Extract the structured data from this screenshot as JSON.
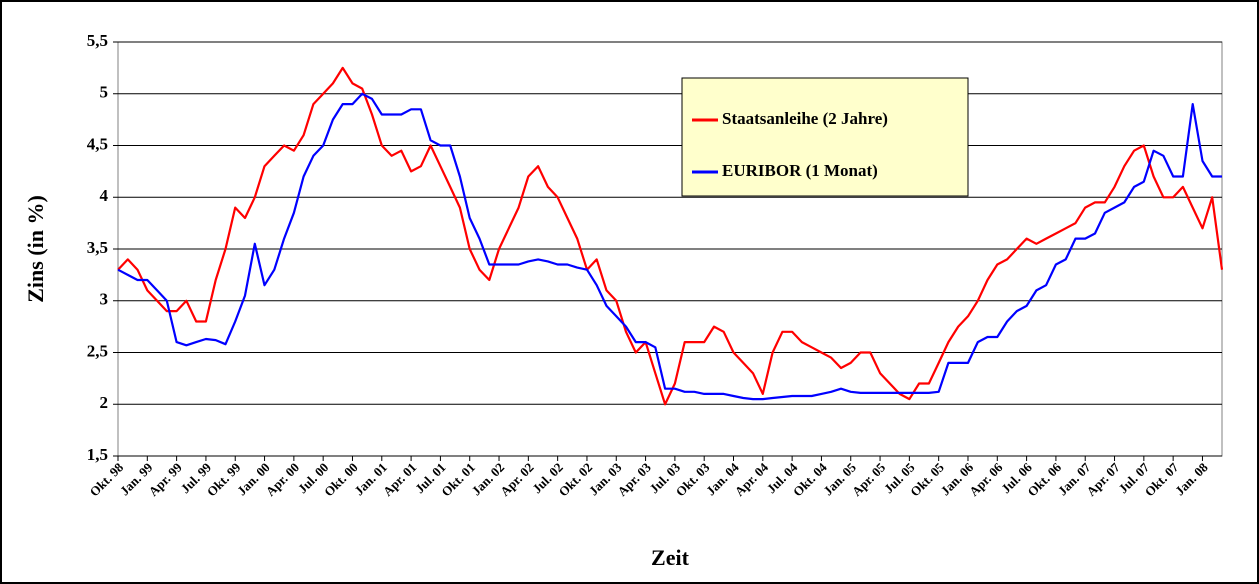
{
  "chart_data": {
    "type": "line",
    "ylabel": "Zins  (in %)",
    "xlabel": "Zeit",
    "categories": [
      "Okt. 98",
      null,
      null,
      "Jan. 99",
      null,
      null,
      "Apr. 99",
      null,
      null,
      "Jul. 99",
      null,
      null,
      "Okt. 99",
      null,
      null,
      "Jan. 00",
      null,
      null,
      "Apr. 00",
      null,
      null,
      "Jul. 00",
      null,
      null,
      "Okt. 00",
      null,
      null,
      "Jan. 01",
      null,
      null,
      "Apr. 01",
      null,
      null,
      "Jul. 01",
      null,
      null,
      "Okt. 01",
      null,
      null,
      "Jan. 02",
      null,
      null,
      "Apr. 02",
      null,
      null,
      "Jul. 02",
      null,
      null,
      "Okt. 02",
      null,
      null,
      "Jan. 03",
      null,
      null,
      "Apr. 03",
      null,
      null,
      "Jul. 03",
      null,
      null,
      "Okt. 03",
      null,
      null,
      "Jan. 04",
      null,
      null,
      "Apr. 04",
      null,
      null,
      "Jul. 04",
      null,
      null,
      "Okt. 04",
      null,
      null,
      "Jan. 05",
      null,
      null,
      "Apr. 05",
      null,
      null,
      "Jul. 05",
      null,
      null,
      "Okt. 05",
      null,
      null,
      "Jan. 06",
      null,
      null,
      "Apr. 06",
      null,
      null,
      "Jul. 06",
      null,
      null,
      "Okt. 06",
      null,
      null,
      "Jan. 07",
      null,
      null,
      "Apr. 07",
      null,
      null,
      "Jul. 07",
      null,
      null,
      "Okt. 07",
      null,
      null,
      "Jan. 08",
      null,
      null
    ],
    "series": [
      {
        "name": "Staatsanleihe (2 Jahre)",
        "color": "#ff0000",
        "values": [
          3.3,
          3.4,
          3.3,
          3.1,
          3.0,
          2.9,
          2.9,
          3.0,
          2.8,
          2.8,
          3.2,
          3.5,
          3.9,
          3.8,
          4.0,
          4.3,
          4.4,
          4.5,
          4.45,
          4.6,
          4.9,
          5.0,
          5.1,
          5.25,
          5.1,
          5.05,
          4.8,
          4.5,
          4.4,
          4.45,
          4.25,
          4.3,
          4.5,
          4.3,
          4.1,
          3.9,
          3.5,
          3.3,
          3.2,
          3.5,
          3.7,
          3.9,
          4.2,
          4.3,
          4.1,
          4.0,
          3.8,
          3.6,
          3.3,
          3.4,
          3.1,
          3.0,
          2.7,
          2.5,
          2.6,
          2.3,
          2.0,
          2.2,
          2.6,
          2.6,
          2.6,
          2.75,
          2.7,
          2.5,
          2.4,
          2.3,
          2.1,
          2.5,
          2.7,
          2.7,
          2.6,
          2.55,
          2.5,
          2.45,
          2.35,
          2.4,
          2.5,
          2.5,
          2.3,
          2.2,
          2.1,
          2.05,
          2.2,
          2.2,
          2.4,
          2.6,
          2.75,
          2.85,
          3.0,
          3.2,
          3.35,
          3.4,
          3.5,
          3.6,
          3.55,
          3.6,
          3.65,
          3.7,
          3.75,
          3.9,
          3.95,
          3.95,
          4.1,
          4.3,
          4.45,
          4.5,
          4.2,
          4.0,
          4.0,
          4.1,
          3.9,
          3.7,
          4.0,
          3.3
        ]
      },
      {
        "name": "EURIBOR (1 Monat)",
        "color": "#0000ff",
        "values": [
          3.3,
          3.25,
          3.2,
          3.2,
          3.1,
          3.0,
          2.6,
          2.57,
          2.6,
          2.63,
          2.62,
          2.58,
          2.8,
          3.05,
          3.55,
          3.15,
          3.3,
          3.6,
          3.85,
          4.2,
          4.4,
          4.5,
          4.75,
          4.9,
          4.9,
          5.0,
          4.95,
          4.8,
          4.8,
          4.8,
          4.85,
          4.85,
          4.55,
          4.5,
          4.5,
          4.2,
          3.8,
          3.6,
          3.35,
          3.35,
          3.35,
          3.35,
          3.38,
          3.4,
          3.38,
          3.35,
          3.35,
          3.32,
          3.3,
          3.15,
          2.95,
          2.85,
          2.75,
          2.6,
          2.6,
          2.55,
          2.15,
          2.15,
          2.12,
          2.12,
          2.1,
          2.1,
          2.1,
          2.08,
          2.06,
          2.05,
          2.05,
          2.06,
          2.07,
          2.08,
          2.08,
          2.08,
          2.1,
          2.12,
          2.15,
          2.12,
          2.11,
          2.11,
          2.11,
          2.11,
          2.11,
          2.11,
          2.11,
          2.11,
          2.12,
          2.4,
          2.4,
          2.4,
          2.6,
          2.65,
          2.65,
          2.8,
          2.9,
          2.95,
          3.1,
          3.15,
          3.35,
          3.4,
          3.6,
          3.6,
          3.65,
          3.85,
          3.9,
          3.95,
          4.1,
          4.15,
          4.45,
          4.4,
          4.2,
          4.2,
          4.9,
          4.35,
          4.2,
          4.2
        ]
      }
    ],
    "ylim": [
      1.5,
      5.5
    ],
    "yticks": [
      {
        "value": 1.5,
        "label": "1,5"
      },
      2,
      {
        "value": 2.5,
        "label": "2,5"
      },
      3,
      {
        "value": 3.5,
        "label": "3,5"
      },
      4,
      {
        "value": 4.5,
        "label": "4,5"
      },
      5,
      {
        "value": 5.5,
        "label": "5,5"
      }
    ],
    "grid": true
  }
}
